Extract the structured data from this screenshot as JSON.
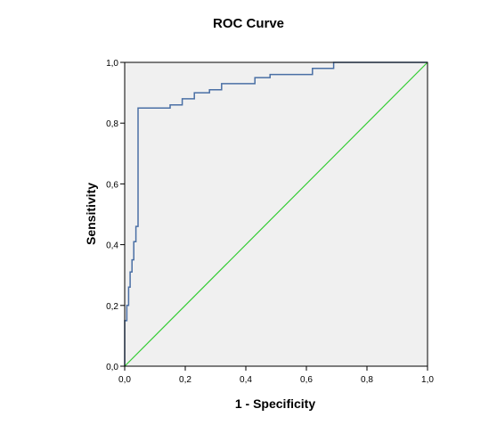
{
  "chart_data": {
    "type": "line",
    "title": "ROC Curve",
    "xlabel": "1 - Specificity",
    "ylabel": "Sensitivity",
    "xlim": [
      0,
      1
    ],
    "ylim": [
      0,
      1
    ],
    "x_ticks": [
      "0,0",
      "0,2",
      "0,4",
      "0,6",
      "0,8",
      "1,0"
    ],
    "y_ticks": [
      "0,0",
      "0,2",
      "0,4",
      "0,6",
      "0,8",
      "1,0"
    ],
    "grid": false,
    "colors": {
      "plot_background": "#f0f0f0",
      "roc_line": "#4a6fa5",
      "reference_line": "#33cc33"
    },
    "series": [
      {
        "points": [
          [
            0.0,
            0.0
          ],
          [
            0.0,
            0.15
          ],
          [
            0.007,
            0.15
          ],
          [
            0.007,
            0.2
          ],
          [
            0.013,
            0.2
          ],
          [
            0.013,
            0.26
          ],
          [
            0.018,
            0.26
          ],
          [
            0.018,
            0.31
          ],
          [
            0.024,
            0.31
          ],
          [
            0.024,
            0.35
          ],
          [
            0.03,
            0.35
          ],
          [
            0.03,
            0.41
          ],
          [
            0.037,
            0.41
          ],
          [
            0.037,
            0.46
          ],
          [
            0.044,
            0.46
          ],
          [
            0.044,
            0.85
          ],
          [
            0.15,
            0.85
          ],
          [
            0.15,
            0.86
          ],
          [
            0.19,
            0.86
          ],
          [
            0.19,
            0.88
          ],
          [
            0.23,
            0.88
          ],
          [
            0.23,
            0.9
          ],
          [
            0.28,
            0.9
          ],
          [
            0.28,
            0.91
          ],
          [
            0.32,
            0.91
          ],
          [
            0.32,
            0.93
          ],
          [
            0.43,
            0.93
          ],
          [
            0.43,
            0.95
          ],
          [
            0.48,
            0.95
          ],
          [
            0.48,
            0.96
          ],
          [
            0.62,
            0.96
          ],
          [
            0.62,
            0.98
          ],
          [
            0.69,
            0.98
          ],
          [
            0.69,
            1.0
          ],
          [
            1.0,
            1.0
          ]
        ]
      },
      {
        "points": [
          [
            0.0,
            0.0
          ],
          [
            1.0,
            1.0
          ]
        ]
      }
    ]
  }
}
